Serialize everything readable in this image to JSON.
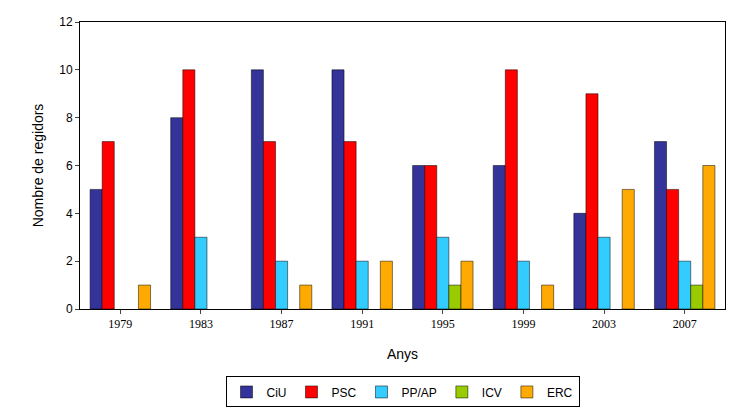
{
  "chart_data": {
    "type": "bar",
    "x_label": "Anys",
    "y_label": "Nombre de regidors",
    "categories": [
      "1979",
      "1983",
      "1987",
      "1991",
      "1995",
      "1999",
      "2003",
      "2007"
    ],
    "series": [
      {
        "name": "CiU",
        "color": "#333399",
        "values": [
          5,
          8,
          10,
          10,
          6,
          6,
          4,
          7
        ]
      },
      {
        "name": "PSC",
        "color": "#ff0000",
        "values": [
          7,
          10,
          7,
          7,
          6,
          10,
          9,
          5
        ]
      },
      {
        "name": "PP/AP",
        "color": "#33ccff",
        "values": [
          null,
          3,
          2,
          2,
          3,
          2,
          3,
          2
        ]
      },
      {
        "name": "ICV",
        "color": "#99cc00",
        "values": [
          null,
          null,
          null,
          null,
          1,
          null,
          null,
          1
        ]
      },
      {
        "name": "ERC",
        "color": "#ffaa00",
        "values": [
          1,
          null,
          1,
          2,
          2,
          1,
          5,
          6
        ]
      }
    ],
    "ylim": [
      0,
      12
    ],
    "yticks": [
      0,
      2,
      4,
      6,
      8,
      10,
      12
    ],
    "grid": false,
    "legend": "bottom"
  }
}
